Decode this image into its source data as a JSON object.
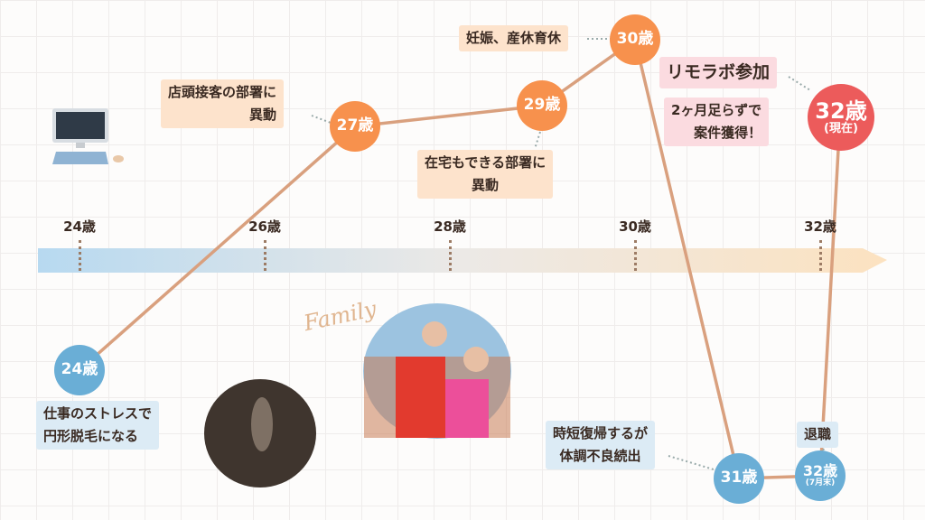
{
  "axis": {
    "ticks": [
      "24歳",
      "26歳",
      "28歳",
      "30歳",
      "32歳"
    ]
  },
  "nodes": {
    "n24": "24歳",
    "n27": "27歳",
    "n29": "29歳",
    "n30": "30歳",
    "n31": "31歳",
    "n32end": "32歳",
    "n32end_sub": "(7月末)",
    "n32now": "32歳",
    "n32now_sub": "(現在)"
  },
  "events": {
    "e24": [
      "仕事のストレスで",
      "円形脱毛になる"
    ],
    "e27": [
      "店頭接客の部署に",
      "異動"
    ],
    "e29": [
      "在宅もできる部署に",
      "異動"
    ],
    "e30": "妊娠、産休育休",
    "e31": [
      "時短復帰するが",
      "体調不良続出"
    ],
    "e32end": "退職",
    "e32now_title": "リモラボ参加",
    "e32now": [
      "2ヶ月足らずで",
      "案件獲得！"
    ]
  },
  "photo_caption": "Family",
  "colors": {
    "orange": "#f7914d",
    "blue": "#6aaed6",
    "red": "#ec5b5b",
    "path": "#d9a07e"
  }
}
